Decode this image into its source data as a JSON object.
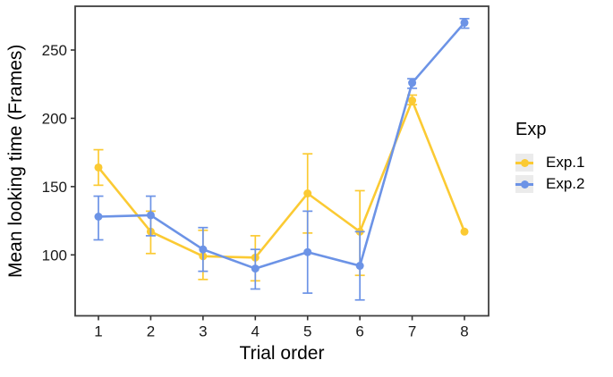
{
  "figure": {
    "background": "#ffffff",
    "panel_border_color": "#404040",
    "tick_color": "#333333",
    "tick_label_color": "#1a1a1a",
    "legend_key_background": "#ebebeb"
  },
  "chart_data": {
    "type": "line",
    "title": "",
    "xlabel": "Trial order",
    "ylabel": "Mean looking time (Frames)",
    "x": [
      1,
      2,
      3,
      4,
      5,
      6,
      7,
      8
    ],
    "y_ticks": [
      100,
      150,
      200,
      250
    ],
    "ylim": [
      55,
      282
    ],
    "grid": false,
    "error_bars": true,
    "legend_title": "Exp",
    "legend_position": "right",
    "series": [
      {
        "name": "Exp.1",
        "color": "#FBCA33",
        "values": [
          164,
          117,
          99,
          98,
          145,
          117,
          213,
          117
        ],
        "ci_low": [
          151,
          101,
          82,
          81,
          116,
          85,
          210,
          117
        ],
        "ci_high": [
          177,
          132,
          118,
          114,
          174,
          147,
          217,
          117
        ]
      },
      {
        "name": "Exp.2",
        "color": "#6C93E6",
        "values": [
          128,
          129,
          104,
          90,
          102,
          92,
          226,
          270
        ],
        "ci_low": [
          111,
          114,
          88,
          75,
          72,
          67,
          222,
          266
        ],
        "ci_high": [
          143,
          143,
          120,
          104,
          132,
          117,
          229,
          273
        ]
      }
    ]
  }
}
